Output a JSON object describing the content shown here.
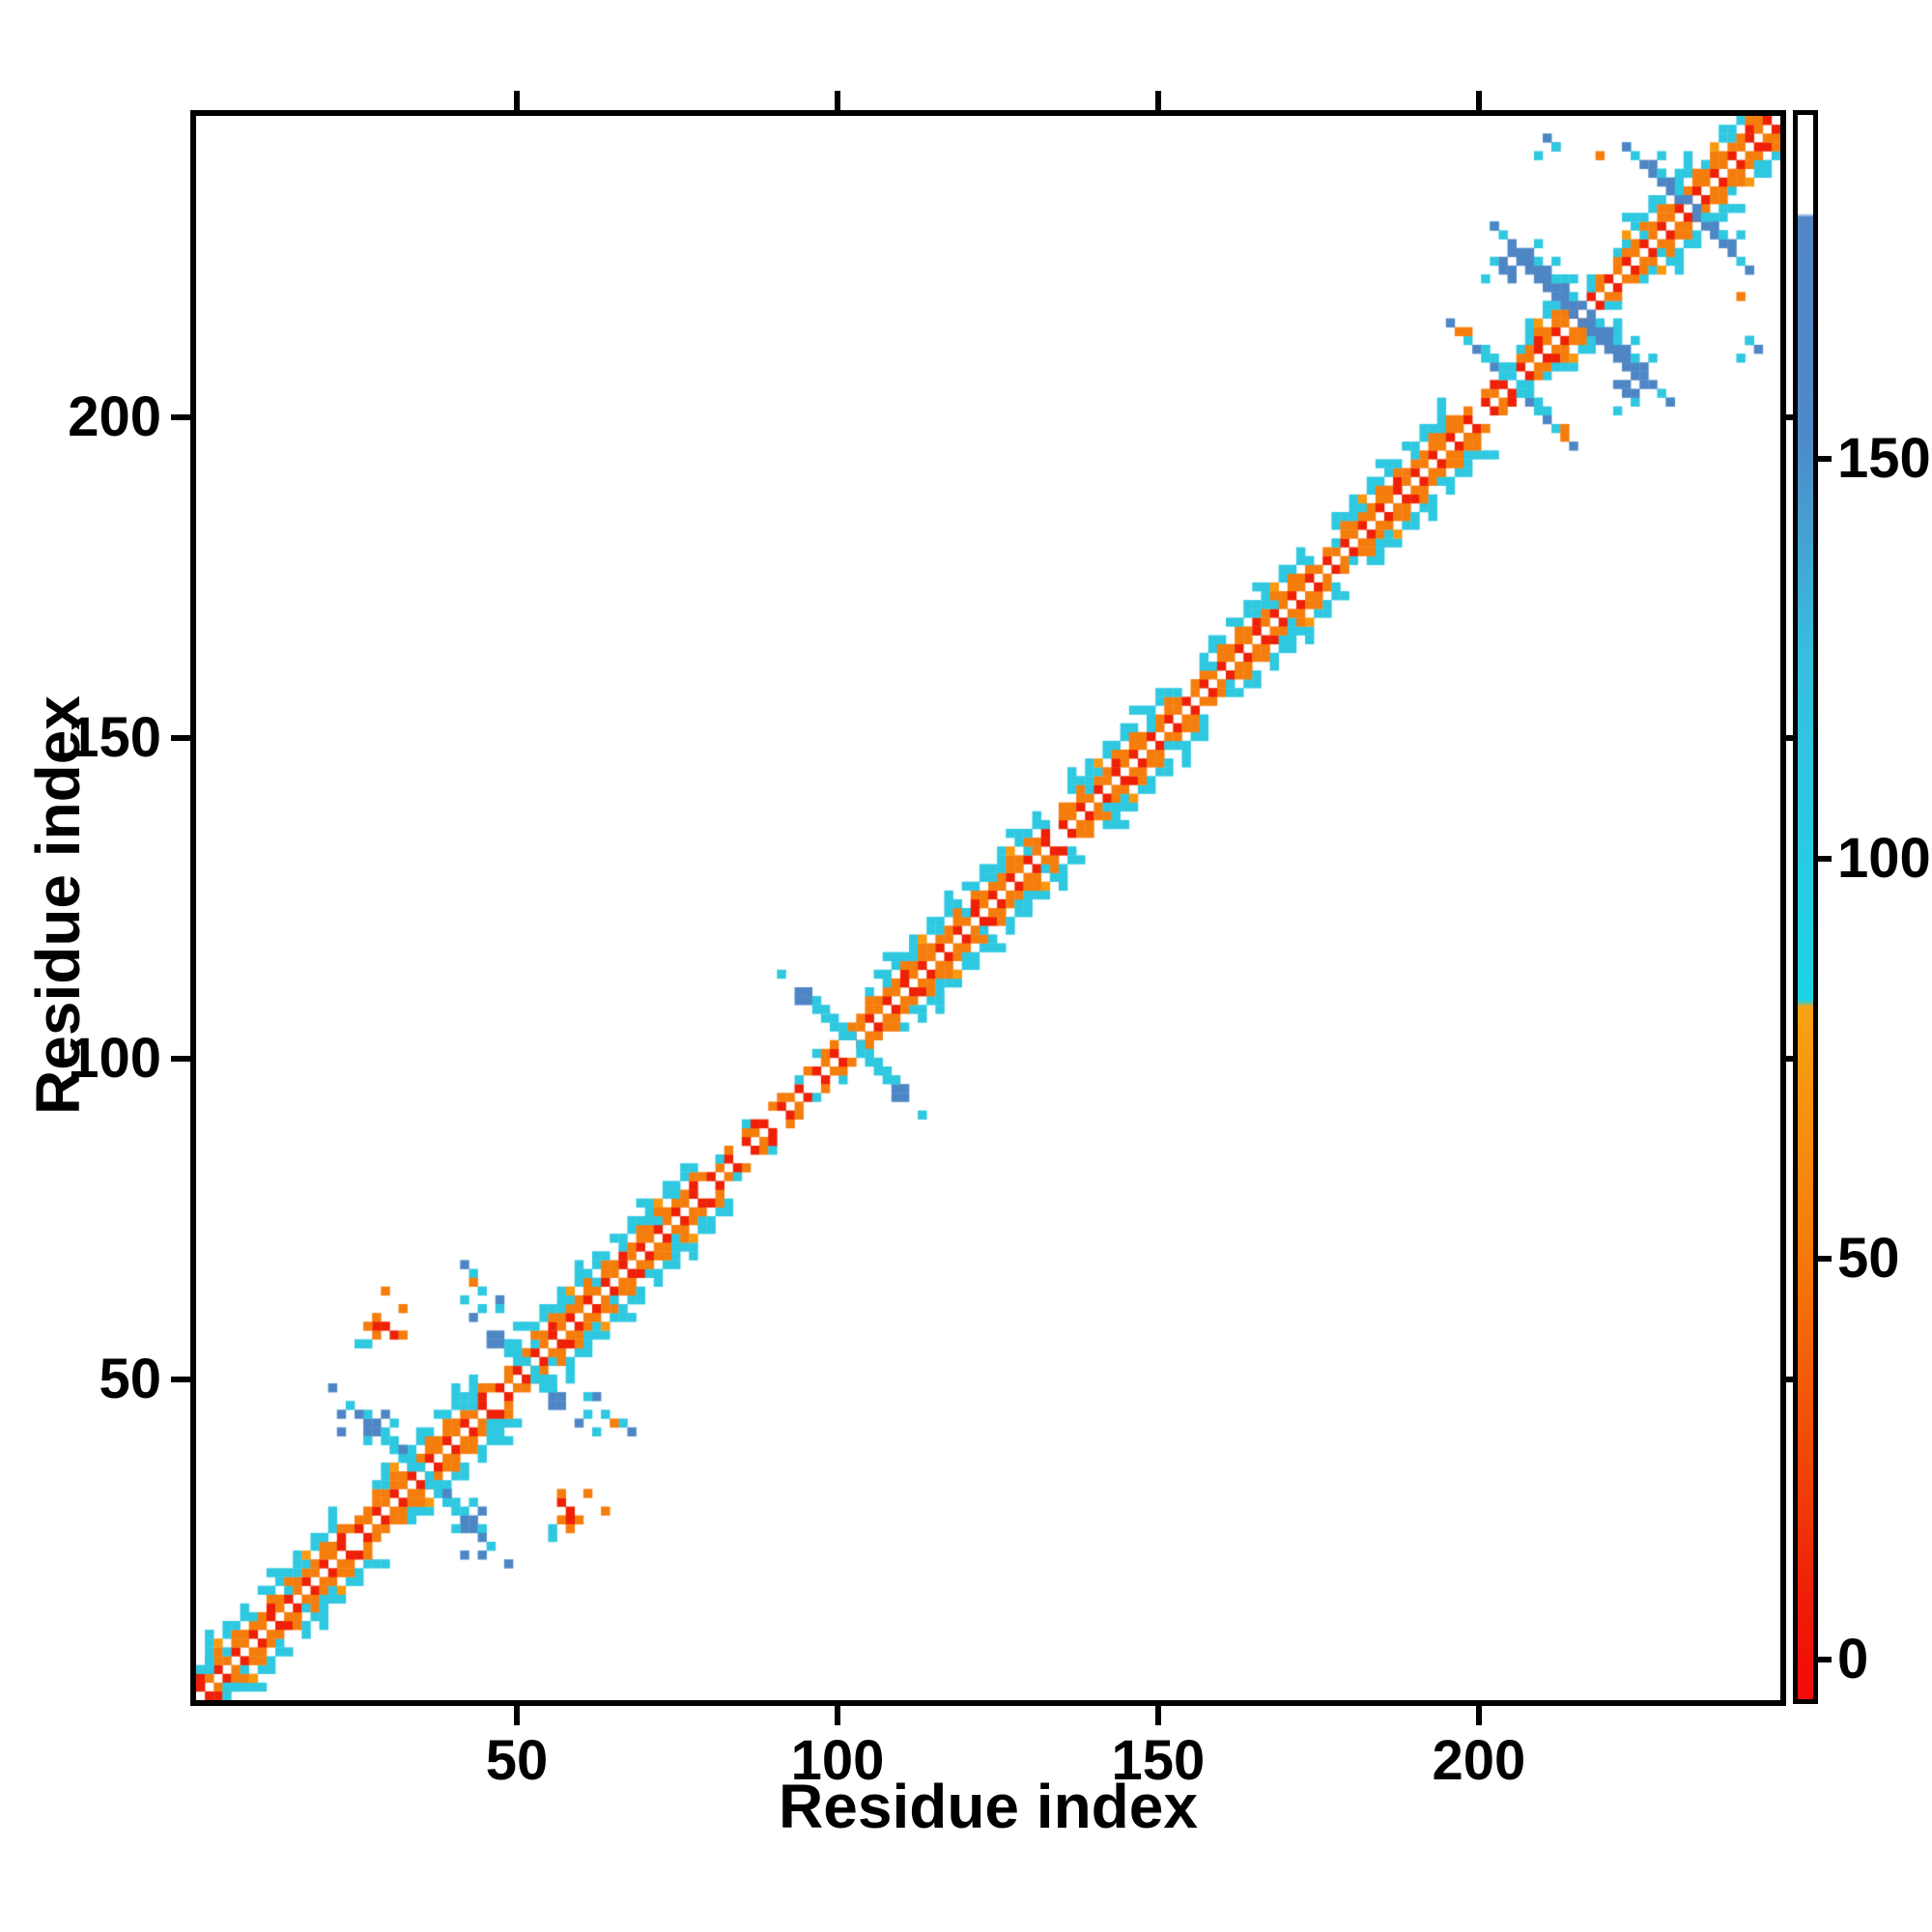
{
  "figure": {
    "background": "#ffffff",
    "frame_color": "#000000"
  },
  "chart_data": {
    "type": "heatmap",
    "title": "",
    "xlabel": "Residue index",
    "ylabel": "Residue index",
    "x_range": [
      0,
      247
    ],
    "y_range": [
      0,
      247
    ],
    "x_ticks": [
      50,
      100,
      150,
      200
    ],
    "y_ticks": [
      50,
      100,
      150,
      200
    ],
    "grid": false,
    "legend": "colorbar-right",
    "residues": 247,
    "grid_bins": 180,
    "palette": {
      "red": "#ee2005",
      "deep_red": "#e51205",
      "orange": "#f57d0c",
      "light_orange": "#f9990f",
      "cyan": "#2ec8e0",
      "blue": "#4e86c5",
      "white": "#ffffff"
    },
    "colorbar": {
      "ticks": [
        150,
        100,
        50,
        0
      ],
      "value_range": [
        -5,
        193
      ],
      "gradient_stops": [
        [
          0,
          "#ffffff"
        ],
        [
          6.2,
          "#ffffff"
        ],
        [
          6.45,
          "#5285c6"
        ],
        [
          20,
          "#4f88c8"
        ],
        [
          34,
          "#38bedd"
        ],
        [
          55.9,
          "#1dd3e6"
        ],
        [
          56.3,
          "#f9a213"
        ],
        [
          72,
          "#f57a0b"
        ],
        [
          84,
          "#f04a07"
        ],
        [
          94,
          "#ee1d06"
        ],
        [
          100,
          "#f20a0a"
        ]
      ]
    },
    "diagonal": {
      "helix_regions": [
        [
          1,
          7
        ],
        [
          9,
          21
        ],
        [
          27,
          43
        ],
        [
          48,
          77
        ],
        [
          104,
          131
        ],
        [
          135,
          152
        ],
        [
          156,
          172
        ],
        [
          177,
          194
        ],
        [
          206,
          213
        ],
        [
          221,
          233
        ],
        [
          235,
          246
        ]
      ],
      "narrow_regions": [
        [
          22,
          26
        ],
        [
          44,
          47
        ],
        [
          78,
          103
        ],
        [
          132,
          134
        ],
        [
          153,
          155
        ],
        [
          173,
          176
        ],
        [
          195,
          205
        ],
        [
          214,
          220
        ]
      ]
    },
    "x_features": [
      {
        "center": 34,
        "arm": 8,
        "width": 2,
        "core": "cyan",
        "tip": "blue",
        "dotted_to": 15
      },
      {
        "center": 51,
        "arm": 6,
        "width": 2,
        "core": "cyan",
        "tip": "blue",
        "dotted_to": 9
      },
      {
        "center": 101,
        "arm": 8,
        "width": 2,
        "core": "cyan",
        "tip": "blue",
        "dotted_to": 12
      },
      {
        "center": 204,
        "arm": 7,
        "width": 2,
        "core": "cyan",
        "tip": "orange",
        "mix": "blue",
        "dotted_to": 10
      },
      {
        "center": 215,
        "arm": 11,
        "width": 3,
        "core": "blue",
        "fringe": "cyan",
        "dotted_to": 15
      },
      {
        "center": 232,
        "arm": 7,
        "width": 2,
        "core": "blue",
        "fringe": "cyan",
        "dotted_to": 10
      }
    ],
    "speckles": [
      [
        29,
        63,
        "orange"
      ],
      [
        31,
        61,
        "orange"
      ],
      [
        28,
        59,
        "orange"
      ],
      [
        29,
        58,
        "red"
      ],
      [
        27,
        56,
        "orange"
      ],
      [
        30,
        56,
        "red"
      ],
      [
        32,
        56,
        "orange"
      ],
      [
        26,
        55,
        "cyan"
      ],
      [
        41,
        67,
        "blue"
      ],
      [
        43,
        66,
        "cyan"
      ],
      [
        43,
        64,
        "orange"
      ],
      [
        44,
        63,
        "cyan"
      ],
      [
        46,
        62,
        "blue"
      ],
      [
        41,
        62,
        "cyan"
      ],
      [
        44,
        60,
        "cyan"
      ],
      [
        46,
        60,
        "cyan"
      ],
      [
        22,
        44,
        "blue"
      ],
      [
        22,
        41,
        "blue"
      ],
      [
        26,
        44,
        "cyan"
      ],
      [
        38,
        32,
        "blue"
      ],
      [
        42,
        30,
        "cyan"
      ],
      [
        44,
        29,
        "blue"
      ],
      [
        40,
        26,
        "cyan"
      ],
      [
        44,
        25,
        "blue"
      ],
      [
        57,
        28,
        "red"
      ],
      [
        58,
        26,
        "orange"
      ],
      [
        55,
        25,
        "cyan"
      ],
      [
        1,
        4,
        "cyan"
      ],
      [
        2,
        6,
        "cyan"
      ],
      [
        210,
        243,
        "blue"
      ],
      [
        211,
        242,
        "blue"
      ],
      [
        212,
        241,
        "cyan"
      ],
      [
        209,
        240,
        "cyan"
      ],
      [
        218,
        240,
        "orange"
      ],
      [
        202,
        223,
        "cyan"
      ],
      [
        203,
        222,
        "blue"
      ],
      [
        205,
        221,
        "blue"
      ],
      [
        222,
        205,
        "blue"
      ],
      [
        224,
        203,
        "blue"
      ],
      [
        221,
        200,
        "cyan"
      ],
      [
        226,
        239,
        "blue"
      ],
      [
        228,
        237,
        "cyan"
      ]
    ]
  }
}
